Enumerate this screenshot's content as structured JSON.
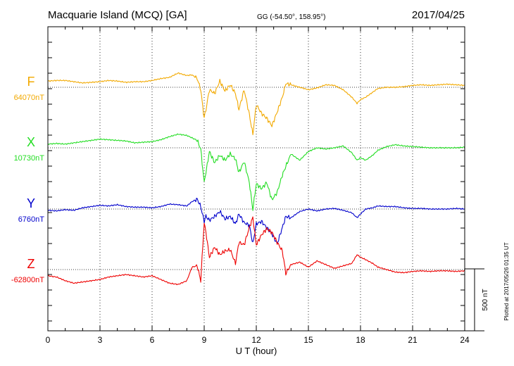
{
  "header": {
    "station": "Macquarie Island (MCQ)  [GA]",
    "coords": "GG (-54.50°, 158.95°)",
    "date": "2017/04/25"
  },
  "side_note": "Plotted at 2017/05/26 01:35 UT",
  "chart_data": {
    "type": "line",
    "xlabel": "U T (hour)",
    "xlim": [
      0,
      24
    ],
    "x_ticks": [
      0,
      3,
      6,
      9,
      12,
      15,
      18,
      21,
      24
    ],
    "x_tick_labels": [
      "0",
      "3",
      "6",
      "9",
      "12",
      "15",
      "18",
      "21",
      "24"
    ],
    "scale_bar": {
      "label": "500 nT",
      "value_nT": 500
    },
    "grid": true,
    "series": [
      {
        "name": "F",
        "baseline_label": "64070nT",
        "color": "#f2a900",
        "baseline_nT": 64070,
        "x": [
          0,
          0.5,
          1,
          1.5,
          2,
          2.5,
          3,
          3.5,
          4,
          4.5,
          5,
          5.5,
          6,
          6.5,
          7,
          7.5,
          8,
          8.3,
          8.6,
          8.8,
          9,
          9.1,
          9.3,
          9.6,
          9.9,
          10.2,
          10.5,
          10.8,
          11,
          11.3,
          11.6,
          11.8,
          12,
          12.3,
          12.6,
          12.9,
          13.2,
          13.5,
          13.7,
          14,
          14.5,
          15,
          15.5,
          16,
          16.5,
          17,
          17.5,
          17.8,
          18,
          18.3,
          18.7,
          19,
          19.5,
          20,
          20.5,
          21,
          21.5,
          22,
          22.5,
          23,
          23.5,
          24
        ],
        "values": [
          50,
          55,
          55,
          45,
          35,
          40,
          45,
          55,
          50,
          40,
          45,
          45,
          55,
          70,
          80,
          115,
          95,
          100,
          70,
          -20,
          -250,
          -180,
          -20,
          -50,
          50,
          -30,
          20,
          -50,
          -180,
          -20,
          -220,
          -380,
          -140,
          -210,
          -250,
          -310,
          -200,
          -80,
          30,
          20,
          0,
          -20,
          -5,
          20,
          15,
          -20,
          -80,
          -130,
          -100,
          -80,
          -40,
          -10,
          0,
          0,
          5,
          15,
          20,
          15,
          20,
          25,
          20,
          15
        ]
      },
      {
        "name": "X",
        "baseline_label": "10730nT",
        "color": "#22dd22",
        "baseline_nT": 10730,
        "x": [
          0,
          0.5,
          1,
          1.5,
          2,
          2.5,
          3,
          3.5,
          4,
          4.5,
          5,
          5.5,
          6,
          6.5,
          7,
          7.5,
          8,
          8.3,
          8.6,
          8.8,
          9,
          9.1,
          9.3,
          9.6,
          9.9,
          10.2,
          10.5,
          10.8,
          11,
          11.3,
          11.6,
          11.8,
          12,
          12.3,
          12.6,
          12.9,
          13.2,
          13.5,
          13.7,
          14,
          14.5,
          15,
          15.5,
          16,
          16.5,
          17,
          17.5,
          17.8,
          18,
          18.3,
          18.7,
          19,
          19.5,
          20,
          20.5,
          21,
          21.5,
          22,
          22.5,
          23,
          23.5,
          24
        ],
        "values": [
          30,
          35,
          30,
          40,
          50,
          60,
          70,
          65,
          60,
          55,
          40,
          45,
          50,
          65,
          90,
          110,
          100,
          80,
          60,
          -10,
          -280,
          -200,
          -30,
          -120,
          -60,
          -100,
          -50,
          -90,
          -200,
          -110,
          -280,
          -500,
          -290,
          -330,
          -280,
          -420,
          -360,
          -220,
          -150,
          -50,
          -100,
          -30,
          0,
          -10,
          0,
          15,
          -40,
          -100,
          -80,
          -100,
          -60,
          -20,
          10,
          25,
          15,
          10,
          5,
          0,
          0,
          0,
          0,
          5
        ]
      },
      {
        "name": "Y",
        "baseline_label": "6760nT",
        "color": "#0000cc",
        "baseline_nT": 6760,
        "x": [
          0,
          0.5,
          1,
          1.5,
          2,
          2.5,
          3,
          3.5,
          4,
          4.5,
          5,
          5.5,
          6,
          6.5,
          7,
          7.5,
          8,
          8.3,
          8.6,
          8.8,
          9,
          9.1,
          9.3,
          9.6,
          9.9,
          10.2,
          10.5,
          10.8,
          11,
          11.3,
          11.6,
          11.8,
          12,
          12.3,
          12.6,
          12.9,
          13.2,
          13.5,
          13.7,
          14,
          14.5,
          15,
          15.5,
          16,
          16.5,
          17,
          17.5,
          17.8,
          18,
          18.3,
          18.7,
          19,
          19.5,
          20,
          20.5,
          21,
          21.5,
          22,
          22.5,
          23,
          23.5,
          24
        ],
        "values": [
          -10,
          -15,
          -5,
          -10,
          10,
          20,
          30,
          25,
          35,
          20,
          15,
          15,
          10,
          20,
          40,
          35,
          25,
          60,
          80,
          20,
          -100,
          -60,
          -90,
          -60,
          -20,
          -80,
          -60,
          -120,
          -40,
          -110,
          -130,
          -280,
          -120,
          -100,
          -150,
          -200,
          -280,
          -150,
          -60,
          -70,
          -20,
          0,
          -15,
          0,
          5,
          -10,
          -30,
          -70,
          -40,
          0,
          10,
          25,
          20,
          20,
          10,
          5,
          5,
          0,
          0,
          0,
          5,
          0
        ]
      },
      {
        "name": "Z",
        "baseline_label": "-62800nT",
        "color": "#ee0000",
        "baseline_nT": -62800,
        "x": [
          0,
          0.5,
          1,
          1.5,
          2,
          2.5,
          3,
          3.5,
          4,
          4.5,
          5,
          5.5,
          6,
          6.5,
          7,
          7.5,
          8,
          8.3,
          8.6,
          8.8,
          9,
          9.1,
          9.3,
          9.6,
          9.9,
          10.2,
          10.5,
          10.8,
          11,
          11.3,
          11.6,
          11.8,
          12,
          12.3,
          12.6,
          12.9,
          13.2,
          13.5,
          13.7,
          14,
          14.5,
          15,
          15.5,
          16,
          16.5,
          17,
          17.5,
          17.8,
          18,
          18.3,
          18.7,
          19,
          19.5,
          20,
          20.5,
          21,
          21.5,
          22,
          22.5,
          23,
          23.5,
          24
        ],
        "values": [
          -50,
          -60,
          -90,
          -110,
          -100,
          -90,
          -80,
          -60,
          -50,
          -40,
          -50,
          -60,
          -50,
          -80,
          -110,
          -120,
          -90,
          20,
          30,
          -90,
          380,
          300,
          100,
          180,
          120,
          150,
          160,
          50,
          220,
          200,
          340,
          420,
          200,
          280,
          330,
          300,
          220,
          150,
          -30,
          40,
          60,
          20,
          70,
          40,
          10,
          30,
          50,
          120,
          100,
          80,
          50,
          20,
          0,
          -20,
          -25,
          -15,
          -10,
          -15,
          -10,
          -10,
          -15,
          -10
        ]
      }
    ]
  }
}
